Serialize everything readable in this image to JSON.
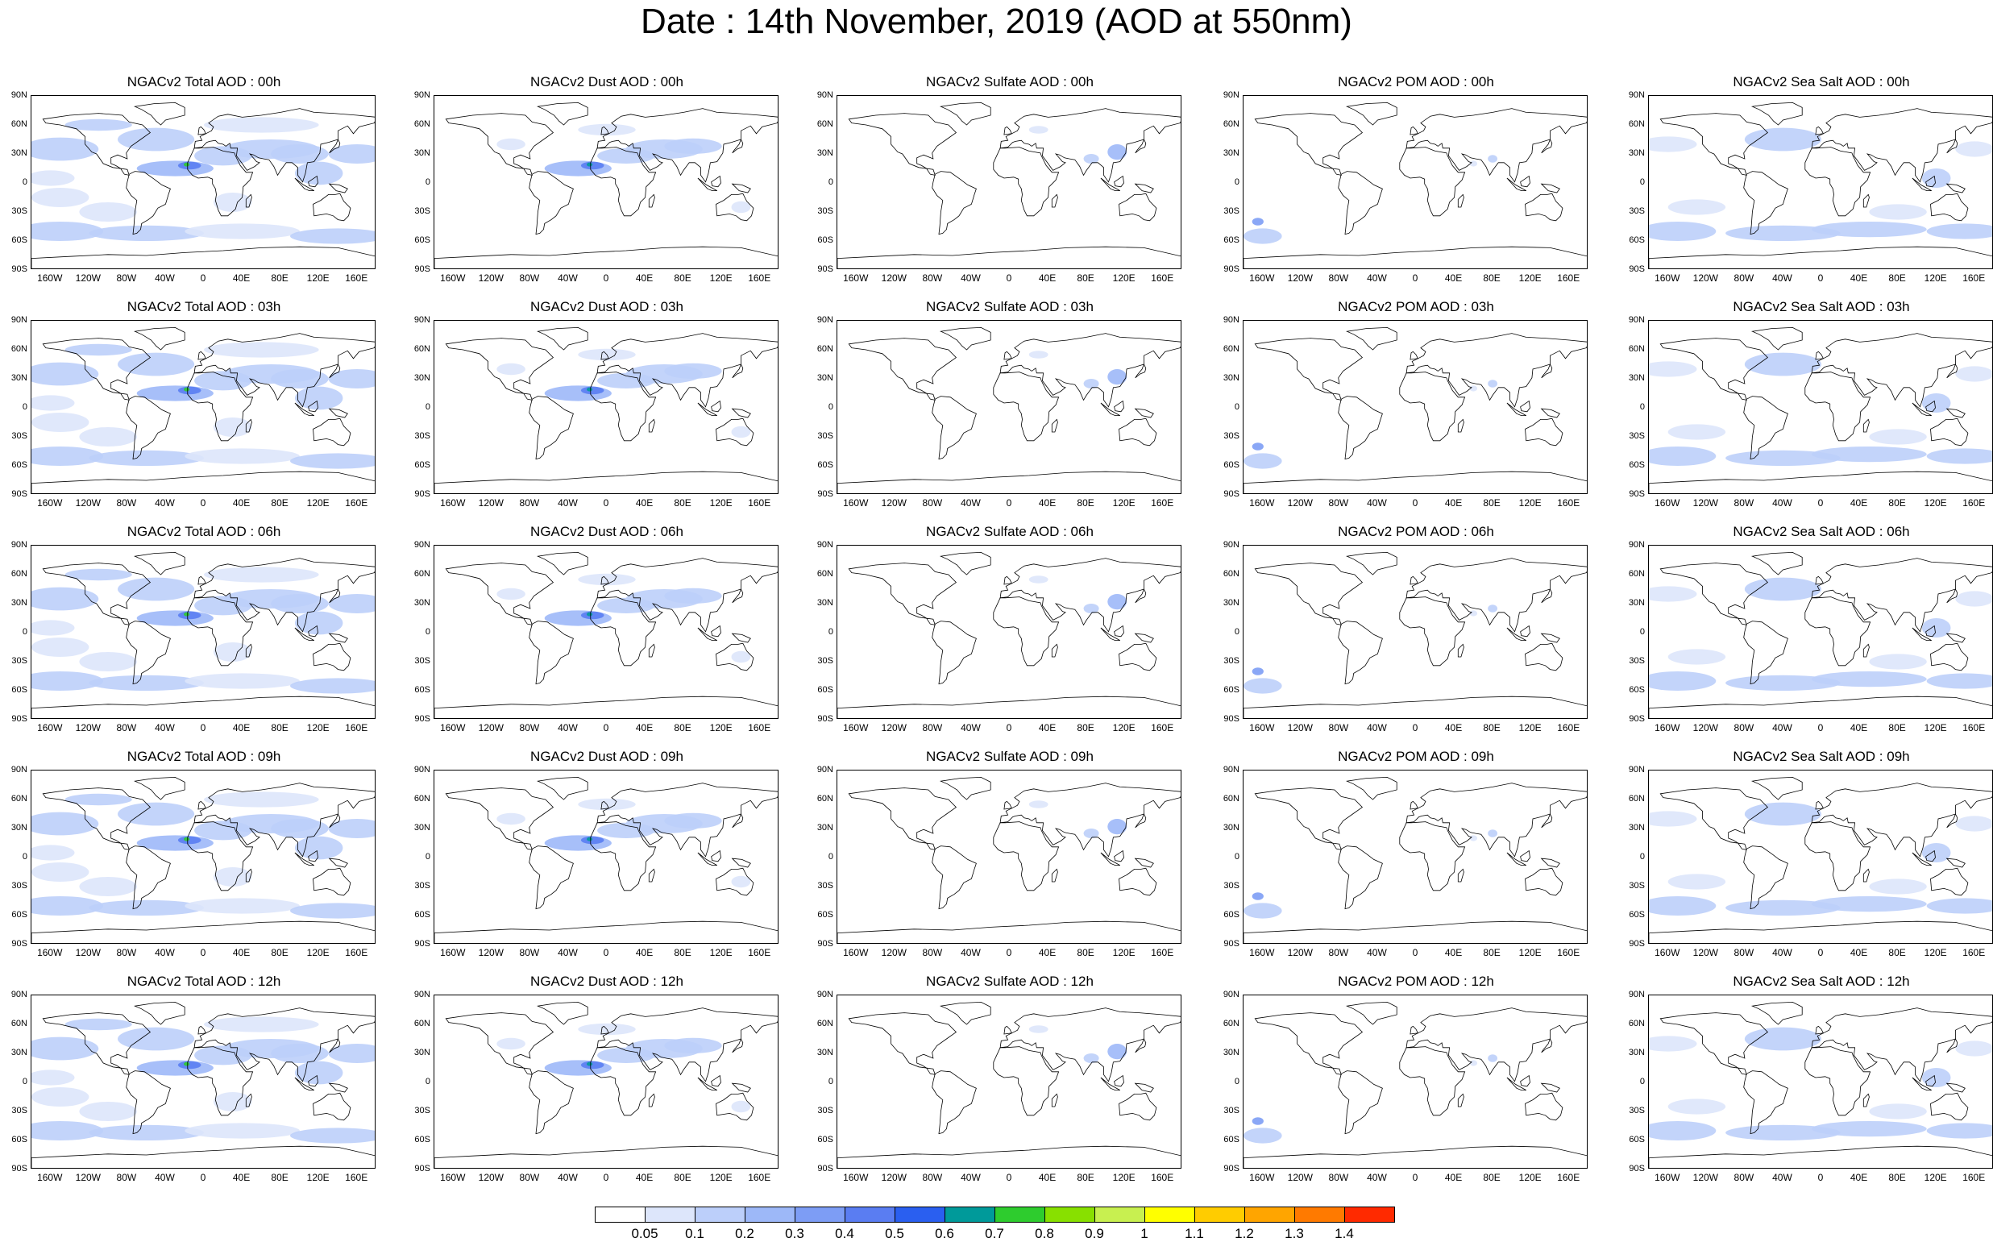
{
  "title": "Date : 14th November, 2019 (AOD at 550nm)",
  "panels": [
    [
      "NGACv2 Total AOD : 00h",
      "NGACv2 Dust AOD : 00h",
      "NGACv2 Sulfate AOD : 00h",
      "NGACv2 POM AOD : 00h",
      "NGACv2 Sea Salt AOD : 00h"
    ],
    [
      "NGACv2 Total AOD : 03h",
      "NGACv2 Dust AOD : 03h",
      "NGACv2 Sulfate AOD : 03h",
      "NGACv2 POM AOD : 03h",
      "NGACv2 Sea Salt AOD : 03h"
    ],
    [
      "NGACv2 Total AOD : 06h",
      "NGACv2 Dust AOD : 06h",
      "NGACv2 Sulfate AOD : 06h",
      "NGACv2 POM AOD : 06h",
      "NGACv2 Sea Salt AOD : 06h"
    ],
    [
      "NGACv2 Total AOD : 09h",
      "NGACv2 Dust AOD : 09h",
      "NGACv2 Sulfate AOD : 09h",
      "NGACv2 POM AOD : 09h",
      "NGACv2 Sea Salt  AOD : 09h"
    ],
    [
      "NGACv2 Total AOD  : 12h",
      "NGACv2 Dust AOD : 12h",
      "NGACv2 Sulfate AOD : 12h",
      "NGACv2 POM  AOD : 12h",
      "NGACv2 Sea Salt  AOD : 12h"
    ]
  ],
  "lat_labels": [
    "90N",
    "60N",
    "30N",
    "0",
    "30S",
    "60S",
    "90S"
  ],
  "lon_labels": [
    "160W",
    "120W",
    "80W",
    "40W",
    "0",
    "40E",
    "80E",
    "120E",
    "160E"
  ],
  "colorbar": {
    "labels": [
      "0.05",
      "0.1",
      "0.2",
      "0.3",
      "0.4",
      "0.5",
      "0.6",
      "0.7",
      "0.8",
      "0.9",
      "1",
      "1.1",
      "1.2",
      "1.3",
      "1.4"
    ],
    "colors": [
      "#ffffff",
      "#dde6fb",
      "#bccffa",
      "#9db8f8",
      "#7d9df5",
      "#5a7df2",
      "#2a5ff0",
      "#009a9a",
      "#2ecc2e",
      "#88e000",
      "#c8f050",
      "#ffff00",
      "#ffcc00",
      "#ffa500",
      "#ff7a00",
      "#ff2a00"
    ]
  },
  "species": [
    "total",
    "dust",
    "sulfate",
    "pom",
    "seasalt"
  ]
}
